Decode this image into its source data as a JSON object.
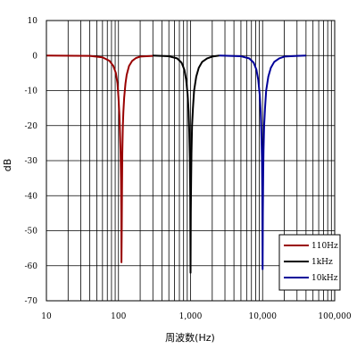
{
  "chart_data": {
    "type": "line",
    "title": "",
    "xlabel": "周波数(Hz)",
    "ylabel": "dB",
    "x_scale": "log",
    "xlim": [
      10,
      100000
    ],
    "ylim": [
      -70,
      10
    ],
    "grid": true,
    "legend_position": "bottom-right",
    "x_ticks": [
      {
        "value": 10,
        "label": "10"
      },
      {
        "value": 100,
        "label": "100"
      },
      {
        "value": 1000,
        "label": "1,000"
      },
      {
        "value": 10000,
        "label": "10,000"
      },
      {
        "value": 100000,
        "label": "100,000"
      }
    ],
    "y_ticks": [
      {
        "value": 10,
        "label": "10"
      },
      {
        "value": 0,
        "label": "0"
      },
      {
        "value": -10,
        "label": "-10"
      },
      {
        "value": -20,
        "label": "-20"
      },
      {
        "value": -30,
        "label": "-30"
      },
      {
        "value": -40,
        "label": "-40"
      },
      {
        "value": -50,
        "label": "-50"
      },
      {
        "value": -60,
        "label": "-60"
      },
      {
        "value": -70,
        "label": "-70"
      }
    ],
    "series": [
      {
        "name": "110Hz",
        "color": "#990000",
        "x": [
          10,
          40,
          60,
          75,
          85,
          92,
          97,
          100,
          103,
          105,
          107,
          108.5,
          109.5,
          110,
          111,
          112,
          113,
          115,
          117,
          120,
          125,
          130,
          140,
          155,
          175,
          200,
          300
        ],
        "y": [
          0,
          -0.1,
          -0.5,
          -1.5,
          -3,
          -5,
          -8,
          -12,
          -17,
          -22,
          -28,
          -35,
          -45,
          -59,
          -50,
          -38,
          -28,
          -20,
          -16,
          -12,
          -8,
          -5.5,
          -3,
          -1.5,
          -0.7,
          -0.3,
          -0.1
        ]
      },
      {
        "name": "1kHz",
        "color": "#000000",
        "x": [
          300,
          500,
          650,
          750,
          820,
          870,
          910,
          940,
          960,
          980,
          990,
          995,
          1000,
          1008,
          1020,
          1030,
          1050,
          1080,
          1120,
          1200,
          1300,
          1450,
          1700,
          2000,
          2500
        ],
        "y": [
          0,
          -0.2,
          -0.8,
          -2,
          -4,
          -7,
          -11,
          -16,
          -22,
          -30,
          -40,
          -52,
          -62,
          -45,
          -35,
          -28,
          -20,
          -15,
          -10,
          -6,
          -3.5,
          -1.8,
          -0.8,
          -0.3,
          0
        ]
      },
      {
        "name": "10kHz",
        "color": "#000099",
        "x": [
          2500,
          5000,
          6500,
          7500,
          8200,
          8700,
          9100,
          9400,
          9600,
          9800,
          9900,
          9950,
          10000,
          10080,
          10200,
          10300,
          10500,
          10800,
          11200,
          12000,
          13000,
          14500,
          17000,
          20000,
          30000,
          40000
        ],
        "y": [
          0,
          -0.2,
          -0.8,
          -2,
          -4,
          -7,
          -11,
          -16,
          -22,
          -30,
          -40,
          -50,
          -61,
          -45,
          -33,
          -27,
          -20,
          -15,
          -10,
          -6,
          -3.5,
          -1.8,
          -0.8,
          -0.3,
          -0.1,
          0
        ]
      }
    ]
  }
}
